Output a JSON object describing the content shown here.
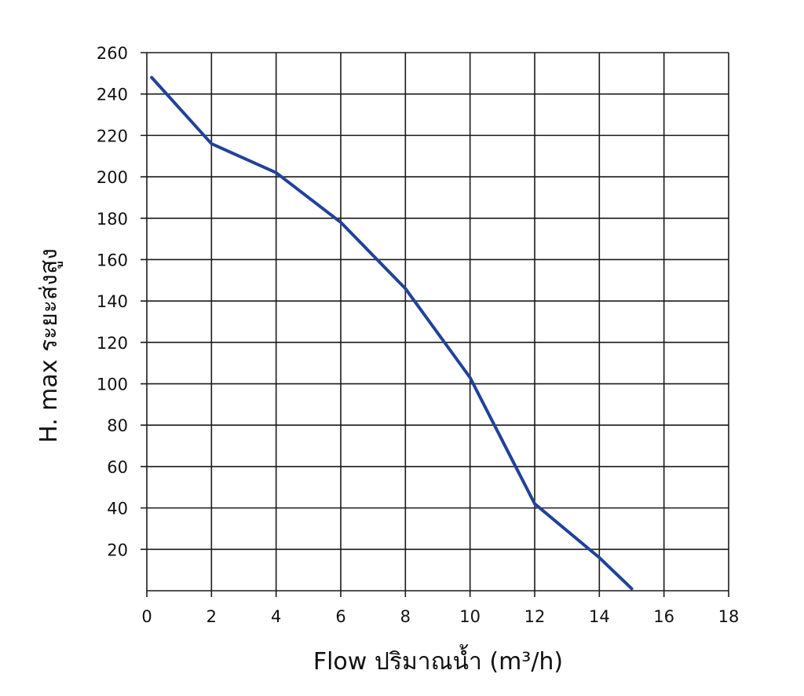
{
  "chart_data": {
    "type": "line",
    "title": "",
    "xlabel": "Flow  ปริมาณน้ำ (m³/h)",
    "ylabel": "H. max  ระยะส่งสูง",
    "xlim": [
      0,
      18
    ],
    "ylim": [
      0,
      260
    ],
    "x_ticks": [
      0,
      2,
      4,
      6,
      8,
      10,
      12,
      14,
      16,
      18
    ],
    "x_tick_labels": [
      "0",
      "2",
      "4",
      "6",
      "8",
      "10",
      "12",
      "14",
      "16",
      "18"
    ],
    "y_ticks": [
      20,
      40,
      60,
      80,
      100,
      120,
      140,
      160,
      180,
      200,
      220,
      240,
      260
    ],
    "y_tick_labels": [
      "20",
      "40",
      "60",
      "80",
      "100",
      "120",
      "140",
      "160",
      "180",
      "200",
      "220",
      "240",
      "260"
    ],
    "grid": true,
    "legend": "none",
    "series": [
      {
        "color": "#21429a",
        "x": [
          0.15,
          2,
          4,
          6,
          8,
          10,
          12,
          14,
          15
        ],
        "y": [
          248,
          216,
          202,
          178,
          146,
          103,
          42,
          16,
          1
        ]
      }
    ]
  }
}
